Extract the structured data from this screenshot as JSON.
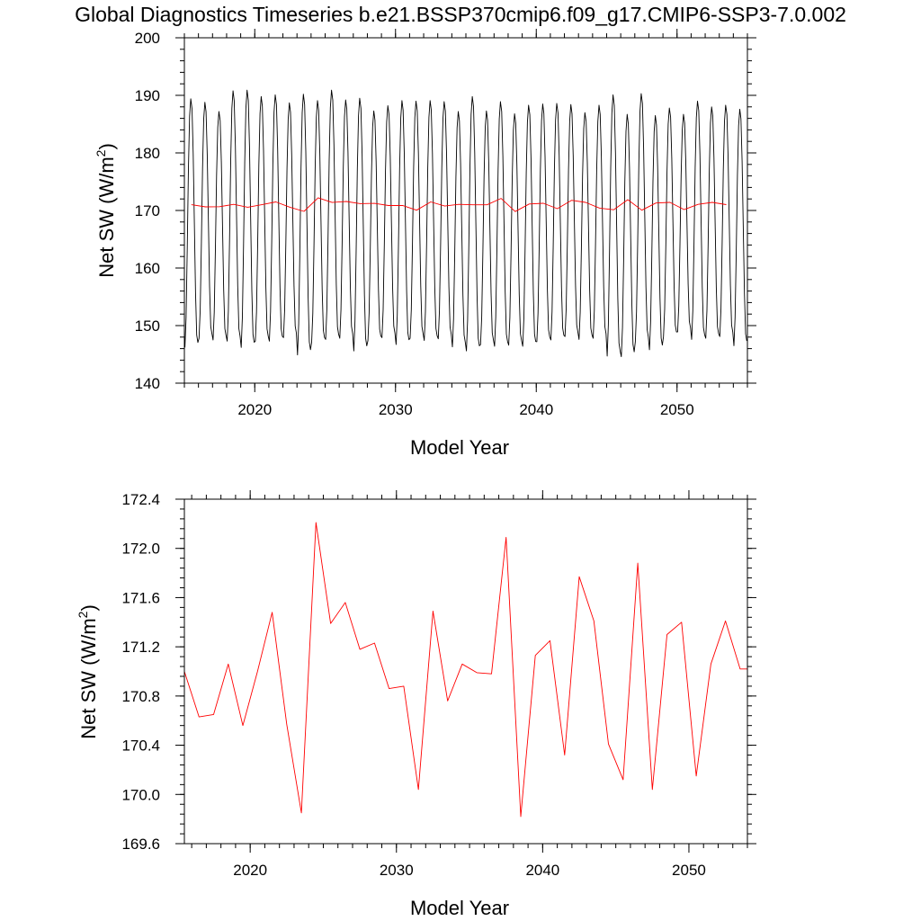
{
  "figure": {
    "title": "Global Diagnostics Timeseries b.e21.BSSP370cmip6.f09_g17.CMIP6-SSP3-7.0.002"
  },
  "chart_data": [
    {
      "type": "line",
      "xlabel": "Model Year",
      "ylabel": "Net SW (W/m",
      "ylabel_sup": "2",
      "ylabel_end": ")",
      "xlim": [
        2015,
        2055
      ],
      "ylim": [
        140,
        200
      ],
      "xticks": [
        2020,
        2030,
        2040,
        2050
      ],
      "yticks": [
        140,
        150,
        160,
        170,
        180,
        190,
        200
      ],
      "xminor_step": 1,
      "yminor_step": 2,
      "series": [
        {
          "color": "#000000",
          "kind": "monthly",
          "x_start": 2015.04,
          "x_step": 0.0833333,
          "annual_max": [
            189.4,
            188.8,
            187.2,
            190.8,
            190.9,
            189.8,
            190.1,
            188.7,
            190.2,
            189.1,
            190.9,
            189.2,
            189.5,
            187.3,
            188.2,
            189.1,
            189.0,
            189.1,
            188.9,
            187.2,
            189.8,
            187.3,
            188.9,
            186.8,
            188.3,
            188.5,
            188.6,
            188.4,
            187.0,
            188.3,
            190.1,
            186.7,
            190.3,
            186.5,
            187.8,
            186.7,
            189.0,
            188.0,
            188.3,
            187.6
          ],
          "annual_min": [
            146.2,
            147.8,
            147.5,
            147.3,
            146.2,
            147.3,
            147.3,
            147.9,
            144.9,
            147.1,
            147.6,
            147.8,
            145.6,
            147.4,
            147.9,
            146.7,
            147.8,
            147.4,
            147.7,
            146.3,
            145.6,
            146.7,
            146.4,
            146.6,
            146.4,
            147.2,
            147.5,
            148.1,
            147.6,
            147.8,
            144.7,
            144.6,
            147.2,
            145.8,
            148.1,
            148.9,
            147.6,
            147.8,
            148.1,
            146.5
          ]
        },
        {
          "color": "#ff0000",
          "kind": "annual",
          "x": [
            2015.5,
            2016.5,
            2017.5,
            2018.5,
            2019.5,
            2020.5,
            2021.5,
            2022.5,
            2023.5,
            2024.5,
            2025.5,
            2026.5,
            2027.5,
            2028.5,
            2029.5,
            2030.5,
            2031.5,
            2032.5,
            2033.5,
            2034.5,
            2035.5,
            2036.5,
            2037.5,
            2038.5,
            2039.5,
            2040.5,
            2041.5,
            2042.5,
            2043.5,
            2044.5,
            2045.5,
            2046.5,
            2047.5,
            2048.5,
            2049.5,
            2050.5,
            2051.5,
            2052.5,
            2053.5
          ],
          "y": [
            171.0,
            170.63,
            170.65,
            171.06,
            170.56,
            171.0,
            171.48,
            170.57,
            169.85,
            172.21,
            171.39,
            171.56,
            171.18,
            171.23,
            170.86,
            170.88,
            170.04,
            171.49,
            170.76,
            171.06,
            170.99,
            170.98,
            172.09,
            169.82,
            171.13,
            171.25,
            170.32,
            171.77,
            171.41,
            170.41,
            170.12,
            171.88,
            170.04,
            171.3,
            171.4,
            170.15,
            171.06,
            171.41,
            171.02
          ]
        }
      ]
    },
    {
      "type": "line",
      "xlabel": "Model Year",
      "ylabel": "Net SW (W/m",
      "ylabel_sup": "2",
      "ylabel_end": ")",
      "xlim": [
        2015.5,
        2054
      ],
      "ylim": [
        169.6,
        172.4
      ],
      "xticks": [
        2020,
        2030,
        2040,
        2050
      ],
      "yticks": [
        169.6,
        170.0,
        170.4,
        170.8,
        171.2,
        171.6,
        172.0,
        172.4
      ],
      "ytick_labels": [
        "169.6",
        "170.0",
        "170.4",
        "170.8",
        "171.2",
        "171.6",
        "172.0",
        "172.4"
      ],
      "xminor_step": 1,
      "yminor_step": 0.08,
      "series": [
        {
          "color": "#ff0000",
          "kind": "annual",
          "x": [
            2015.5,
            2016.5,
            2017.5,
            2018.5,
            2019.5,
            2020.5,
            2021.5,
            2022.5,
            2023.5,
            2024.5,
            2025.5,
            2026.5,
            2027.5,
            2028.5,
            2029.5,
            2030.5,
            2031.5,
            2032.5,
            2033.5,
            2034.5,
            2035.5,
            2036.5,
            2037.5,
            2038.5,
            2039.5,
            2040.5,
            2041.5,
            2042.5,
            2043.5,
            2044.5,
            2045.5,
            2046.5,
            2047.5,
            2048.5,
            2049.5,
            2050.5,
            2051.5,
            2052.5,
            2053.5,
            2054.0
          ],
          "y": [
            171.0,
            170.63,
            170.65,
            171.06,
            170.56,
            171.0,
            171.48,
            170.57,
            169.85,
            172.21,
            171.39,
            171.56,
            171.18,
            171.23,
            170.86,
            170.88,
            170.04,
            171.49,
            170.76,
            171.06,
            170.99,
            170.98,
            172.09,
            169.82,
            171.13,
            171.25,
            170.32,
            171.77,
            171.41,
            170.41,
            170.12,
            171.88,
            170.04,
            171.3,
            171.4,
            170.15,
            171.06,
            171.41,
            171.02,
            171.02
          ]
        }
      ]
    }
  ]
}
